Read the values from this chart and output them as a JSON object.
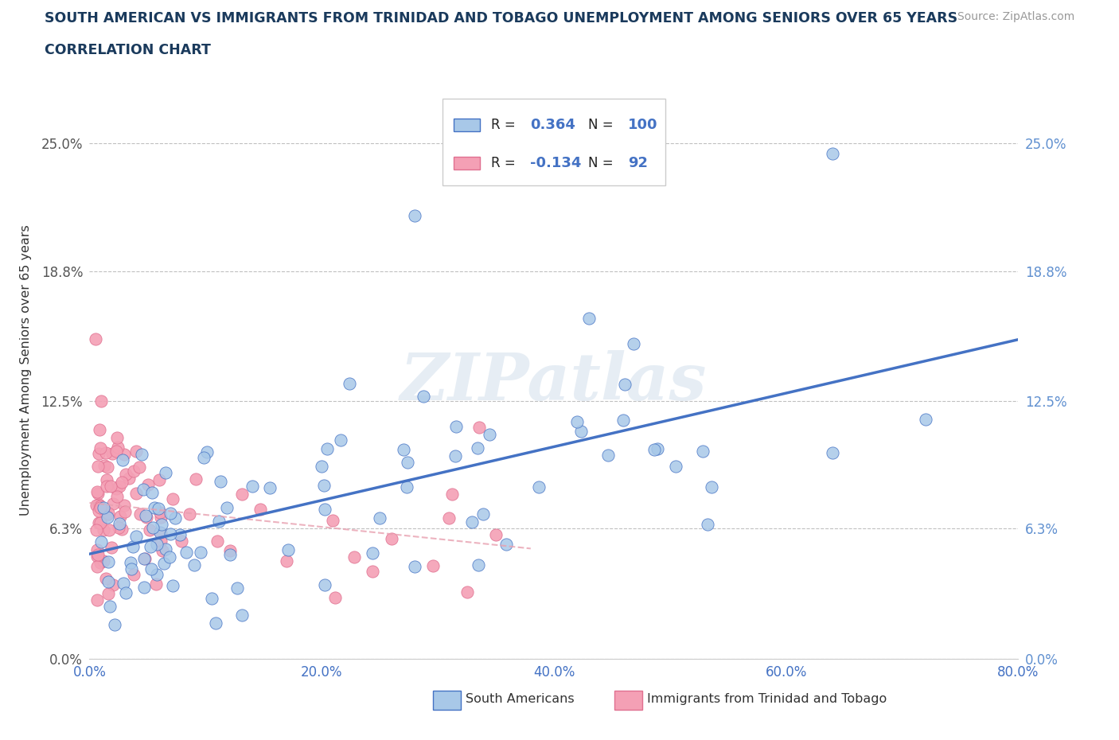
{
  "title_line1": "SOUTH AMERICAN VS IMMIGRANTS FROM TRINIDAD AND TOBAGO UNEMPLOYMENT AMONG SENIORS OVER 65 YEARS",
  "title_line2": "CORRELATION CHART",
  "source": "Source: ZipAtlas.com",
  "ylabel": "Unemployment Among Seniors over 65 years",
  "xlim": [
    0.0,
    0.8
  ],
  "ylim": [
    0.0,
    0.28
  ],
  "yticks": [
    0.0,
    0.063,
    0.125,
    0.188,
    0.25
  ],
  "ytick_labels": [
    "0.0%",
    "6.3%",
    "12.5%",
    "18.8%",
    "25.0%"
  ],
  "xticks": [
    0.0,
    0.2,
    0.4,
    0.6,
    0.8
  ],
  "xtick_labels": [
    "0.0%",
    "20.0%",
    "40.0%",
    "60.0%",
    "80.0%"
  ],
  "color_sa": "#a8c8e8",
  "color_sa_edge": "#4472c4",
  "color_tt": "#f4a0b5",
  "color_tt_edge": "#e07090",
  "color_sa_line": "#4472c4",
  "color_tt_line": "#e8a0b0",
  "R_sa": 0.364,
  "N_sa": 100,
  "R_tt": -0.134,
  "N_tt": 92,
  "watermark": "ZIPatlas",
  "legend_sa": "South Americans",
  "legend_tt": "Immigrants from Trinidad and Tobago",
  "title_color": "#1a3a5c",
  "source_color": "#999999",
  "right_tick_color": "#6090d0",
  "grid_color": "#c0c0c0"
}
